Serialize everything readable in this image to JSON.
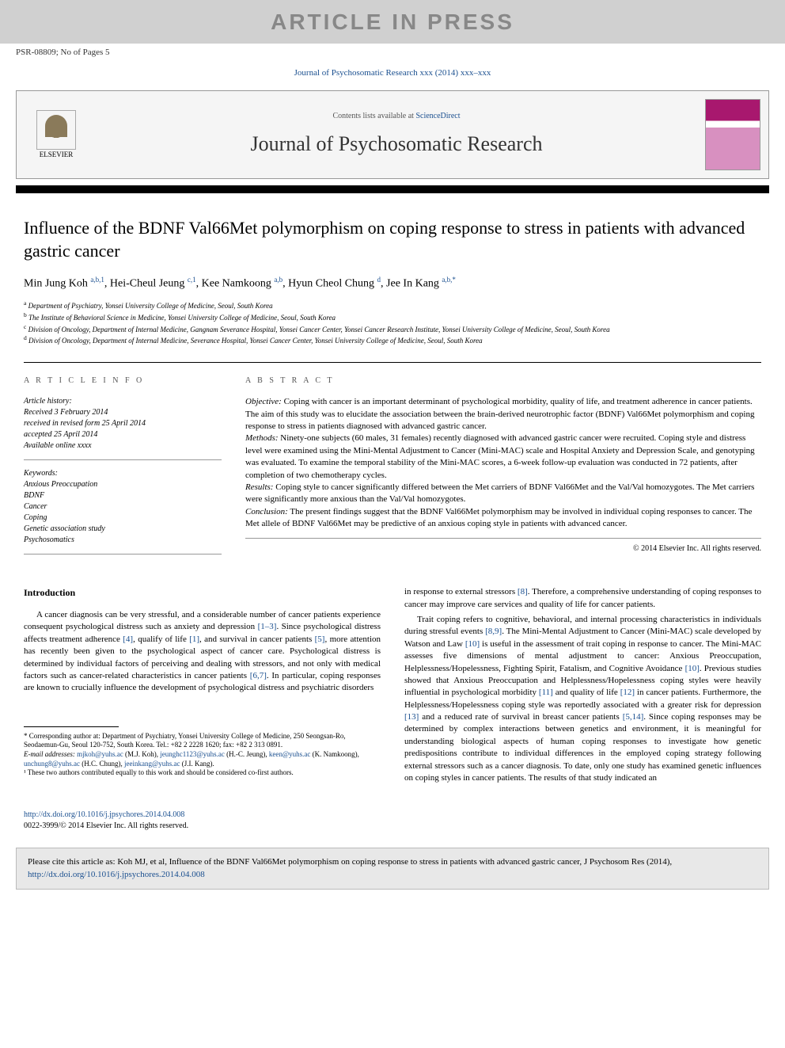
{
  "banner": "ARTICLE IN PRESS",
  "psr": "PSR-08809; No of Pages 5",
  "journal_ref": "Journal of Psychosomatic Research xxx (2014) xxx–xxx",
  "header": {
    "contents": "Contents lists available at ",
    "sciencedirect": "ScienceDirect",
    "journal_name": "Journal of Psychosomatic Research",
    "elsevier": "ELSEVIER"
  },
  "title": "Influence of the BDNF Val66Met polymorphism on coping response to stress in patients with advanced gastric cancer",
  "authors_html": "Min Jung Koh <sup>a,b,1</sup>, Hei-Cheul Jeung <sup>c,1</sup>, Kee Namkoong <sup>a,b</sup>, Hyun Cheol Chung <sup>d</sup>, Jee In Kang <sup>a,b,*</sup>",
  "affiliations": [
    {
      "sup": "a",
      "text": "Department of Psychiatry, Yonsei University College of Medicine, Seoul, South Korea"
    },
    {
      "sup": "b",
      "text": "The Institute of Behavioral Science in Medicine, Yonsei University College of Medicine, Seoul, South Korea"
    },
    {
      "sup": "c",
      "text": "Division of Oncology, Department of Internal Medicine, Gangnam Severance Hospital, Yonsei Cancer Center, Yonsei Cancer Research Institute, Yonsei University College of Medicine, Seoul, South Korea"
    },
    {
      "sup": "d",
      "text": "Division of Oncology, Department of Internal Medicine, Severance Hospital, Yonsei Cancer Center, Yonsei University College of Medicine, Seoul, South Korea"
    }
  ],
  "article_info_heading": "a r t i c l e   i n f o",
  "history": {
    "label": "Article history:",
    "lines": [
      "Received 3 February 2014",
      "received in revised form 25 April 2014",
      "accepted 25 April 2014",
      "Available online xxxx"
    ]
  },
  "keywords": {
    "label": "Keywords:",
    "items": [
      "Anxious Preoccupation",
      "BDNF",
      "Cancer",
      "Coping",
      "Genetic association study",
      "Psychosomatics"
    ]
  },
  "abstract_heading": "a b s t r a c t",
  "abstract": {
    "objective_label": "Objective:",
    "objective": " Coping with cancer is an important determinant of psychological morbidity, quality of life, and treatment adherence in cancer patients. The aim of this study was to elucidate the association between the brain-derived neurotrophic factor (BDNF) Val66Met polymorphism and coping response to stress in patients diagnosed with advanced gastric cancer.",
    "methods_label": "Methods:",
    "methods": " Ninety-one subjects (60 males, 31 females) recently diagnosed with advanced gastric cancer were recruited. Coping style and distress level were examined using the Mini-Mental Adjustment to Cancer (Mini-MAC) scale and Hospital Anxiety and Depression Scale, and genotyping was evaluated. To examine the temporal stability of the Mini-MAC scores, a 6-week follow-up evaluation was conducted in 72 patients, after completion of two chemotherapy cycles.",
    "results_label": "Results:",
    "results": " Coping style to cancer significantly differed between the Met carriers of BDNF Val66Met and the Val/Val homozygotes. The Met carriers were significantly more anxious than the Val/Val homozygotes.",
    "conclusion_label": "Conclusion:",
    "conclusion": " The present findings suggest that the BDNF Val66Met polymorphism may be involved in individual coping responses to cancer. The Met allele of BDNF Val66Met may be predictive of an anxious coping style in patients with advanced cancer."
  },
  "copyright": "© 2014 Elsevier Inc. All rights reserved.",
  "intro_heading": "Introduction",
  "intro_para1_parts": [
    "A cancer diagnosis can be very stressful, and a considerable number of cancer patients experience consequent psychological distress such as anxiety and depression ",
    ". Since psychological distress affects treatment adherence ",
    ", qualify of life ",
    ", and survival in cancer patients ",
    ", more attention has recently been given to the psychological aspect of cancer care. Psychological distress is determined by individual factors of perceiving and dealing with stressors, and not only with medical factors such as cancer-related characteristics in cancer patients ",
    ". In particular, coping responses are known to crucially influence the development of psychological distress and psychiatric disorders"
  ],
  "intro_refs1": [
    "[1–3]",
    "[4]",
    "[1]",
    "[5]",
    "[6,7]"
  ],
  "col2_para1_parts": [
    "in response to external stressors ",
    ". Therefore, a comprehensive understanding of coping responses to cancer may improve care services and quality of life for cancer patients."
  ],
  "col2_refs1": [
    "[8]"
  ],
  "col2_para2_parts": [
    "Trait coping refers to cognitive, behavioral, and internal processing characteristics in individuals during stressful events ",
    ". The Mini-Mental Adjustment to Cancer (Mini-MAC) scale developed by Watson and Law ",
    " is useful in the assessment of trait coping in response to cancer. The Mini-MAC assesses five dimensions of mental adjustment to cancer: Anxious Preoccupation, Helplessness/Hopelessness, Fighting Spirit, Fatalism, and Cognitive Avoidance ",
    ". Previous studies showed that Anxious Preoccupation and Helplessness/Hopelessness coping styles were heavily influential in psychological morbidity ",
    " and quality of life ",
    " in cancer patients. Furthermore, the Helplessness/Hopelessness coping style was reportedly associated with a greater risk for depression ",
    " and a reduced rate of survival in breast cancer patients ",
    ". Since coping responses may be determined by complex interactions between genetics and environment, it is meaningful for understanding biological aspects of human coping responses to investigate how genetic predispositions contribute to individual differences in the employed coping strategy following external stressors such as a cancer diagnosis. To date, only one study has examined genetic influences on coping styles in cancer patients. The results of that study indicated an"
  ],
  "col2_refs2": [
    "[8,9]",
    "[10]",
    "[10]",
    "[11]",
    "[12]",
    "[13]",
    "[5,14]"
  ],
  "footnotes": {
    "corresponding": "* Corresponding author at: Department of Psychiatry, Yonsei University College of Medicine, 250 Seongsan-Ro, Seodaemun-Gu, Seoul 120-752, South Korea. Tel.: +82 2 2228 1620; fax: +82 2 313 0891.",
    "email_label": "E-mail addresses: ",
    "emails": [
      {
        "addr": "mjkoh@yuhs.ac",
        "name": " (M.J. Koh), "
      },
      {
        "addr": "jeunghc1123@yuhs.ac",
        "name": " (H.-C. Jeung), "
      },
      {
        "addr": "keen@yuhs.ac",
        "name": " (K. Namkoong), "
      },
      {
        "addr": "unchung8@yuhs.ac",
        "name": " (H.C. Chung), "
      },
      {
        "addr": "jeeinkang@yuhs.ac",
        "name": " (J.I. Kang)."
      }
    ],
    "note1": "¹ These two authors contributed equally to this work and should be considered co-first authors."
  },
  "doi": {
    "url": "http://dx.doi.org/10.1016/j.jpsychores.2014.04.008",
    "copyright": "0022-3999/© 2014 Elsevier Inc. All rights reserved."
  },
  "cite_box": {
    "text": "Please cite this article as: Koh MJ, et al, Influence of the BDNF Val66Met polymorphism on coping response to stress in patients with advanced gastric cancer, J Psychosom Res (2014), ",
    "url": "http://dx.doi.org/10.1016/j.jpsychores.2014.04.008"
  },
  "colors": {
    "banner_bg": "#d0d0d0",
    "banner_text": "#888888",
    "link": "#1a4f8f",
    "cover_magenta": "#a8186e",
    "cite_bg": "#e8e8e8"
  }
}
